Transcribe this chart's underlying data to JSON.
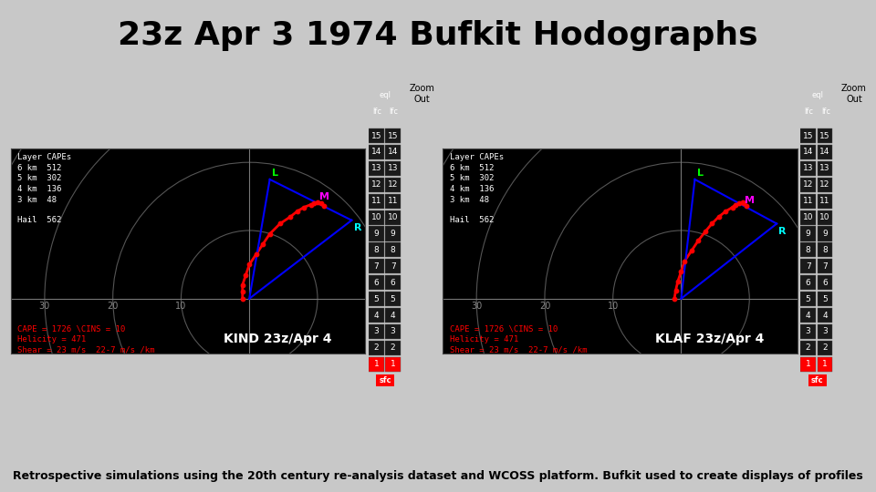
{
  "title": "23z Apr 3 1974 Bufkit Hodographs",
  "title_fontsize": 26,
  "subtitle": "Retrospective simulations using the 20th century re-analysis dataset and WCOSS platform. Bufkit used to create displays of profiles",
  "subtitle_fontsize": 9,
  "outer_bg": "#c8c8c8",
  "panel_bg": "#000000",
  "ring_color": "#555555",
  "crosshair_color": "#777777",
  "hodo_color": "#ff0000",
  "stations": [
    {
      "name": "KIND 23z/Apr 4",
      "layer_capes": [
        [
          "6 km",
          512
        ],
        [
          "5 km",
          302
        ],
        [
          "4 km",
          136
        ],
        [
          "3 km",
          48
        ]
      ],
      "hail": 562,
      "cape": 1726,
      "cins": 10,
      "helicity": 471,
      "shear_text": "Shear = 23 m/s  22-7 m/s /km",
      "hodo_x": [
        -1,
        -1,
        -1,
        -0.5,
        0,
        1,
        2,
        3,
        4.5,
        6,
        7,
        8,
        9,
        9.5,
        10,
        10.5,
        11
      ],
      "hodo_y": [
        0,
        1,
        2,
        3.5,
        5,
        6.5,
        8,
        9.5,
        11,
        12,
        12.8,
        13.4,
        13.8,
        14.0,
        14.1,
        14.0,
        13.6
      ],
      "storm_motion_L_x": 3,
      "storm_motion_L_y": 17.5,
      "storm_motion_M_x": 10,
      "storm_motion_M_y": 14,
      "storm_motion_R_x": 15,
      "storm_motion_R_y": 11.5
    },
    {
      "name": "KLAF 23z/Apr 4",
      "layer_capes": [
        [
          "6 km",
          512
        ],
        [
          "5 km",
          302
        ],
        [
          "4 km",
          136
        ],
        [
          "3 km",
          48
        ]
      ],
      "hail": 562,
      "cape": 1726,
      "cins": 10,
      "helicity": 471,
      "shear_text": "Shear = 23 m/s  22-7 m/s /km",
      "hodo_x": [
        -1,
        -0.8,
        -0.5,
        0,
        0.5,
        1.5,
        2.5,
        3.5,
        4.5,
        5.5,
        6.5,
        7.5,
        8,
        8.5,
        9,
        9.2,
        9.5
      ],
      "hodo_y": [
        0,
        1.2,
        2.5,
        4,
        5.5,
        7,
        8.5,
        9.8,
        11,
        12,
        12.8,
        13.4,
        13.8,
        14.0,
        14.1,
        14.0,
        13.6
      ],
      "storm_motion_L_x": 2,
      "storm_motion_L_y": 17.5,
      "storm_motion_M_x": 9,
      "storm_motion_M_y": 13.5,
      "storm_motion_R_x": 14,
      "storm_motion_R_y": 11
    }
  ],
  "ring_radii": [
    10,
    20,
    30,
    40
  ],
  "sidebar_nums": [
    15,
    14,
    13,
    12,
    11,
    10,
    9,
    8,
    7,
    6,
    5,
    4,
    3,
    2,
    1
  ],
  "xlim": [
    -35,
    17
  ],
  "ylim": [
    -8,
    22
  ],
  "xtick_labels": [
    [
      "-30",
      -30
    ],
    [
      "-20",
      -20
    ],
    [
      "-10",
      -10
    ]
  ],
  "xtick_display": [
    "30",
    "20",
    "10"
  ]
}
